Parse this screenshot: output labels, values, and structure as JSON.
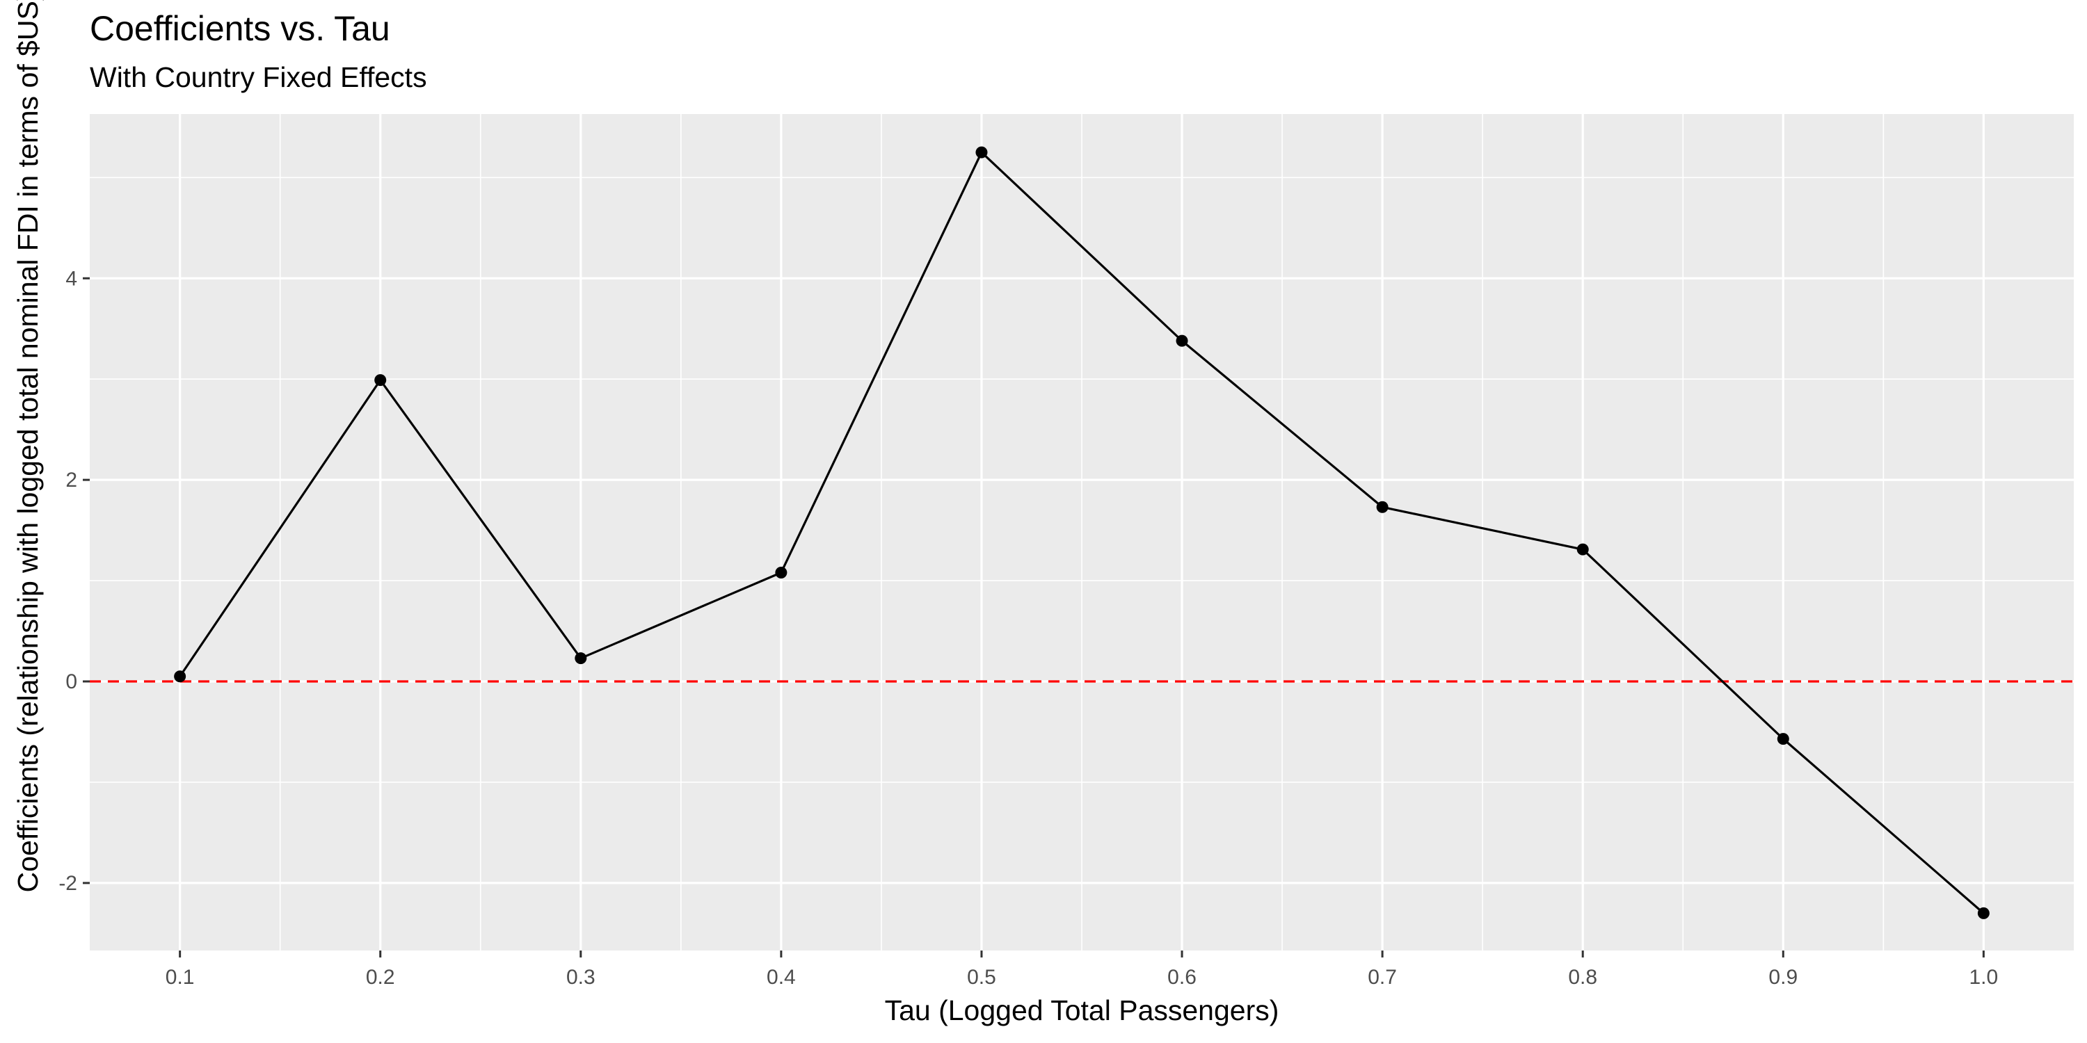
{
  "chart_data": {
    "type": "line",
    "title": "Coefficients vs. Tau",
    "subtitle": "With Country Fixed Effects",
    "xlabel": "Tau (Logged Total Passengers)",
    "ylabel": "Coefficients (relationship with logged total nominal FDI in terms of $US)",
    "x": [
      0.1,
      0.2,
      0.3,
      0.4,
      0.5,
      0.6,
      0.7,
      0.8,
      0.9,
      1.0
    ],
    "x_tick_labels": [
      "0.1",
      "0.2",
      "0.3",
      "0.4",
      "0.5",
      "0.6",
      "0.7",
      "0.8",
      "0.9",
      "1.0"
    ],
    "series": [
      {
        "values": [
          0.05,
          2.99,
          0.23,
          1.08,
          5.25,
          3.38,
          1.73,
          1.31,
          -0.57,
          -2.3
        ]
      }
    ],
    "y_ticks": [
      -2,
      0,
      2,
      4
    ],
    "y_tick_labels": [
      "-2",
      "0",
      "2",
      "4"
    ],
    "xlim": [
      0.055,
      1.045
    ],
    "ylim": [
      -2.67,
      5.63
    ],
    "reference_line": {
      "y": 0,
      "style": "dashed",
      "color": "#ff0000"
    },
    "grid": true,
    "legend": "none",
    "colors": {
      "panel": "#ebebeb",
      "grid": "#ffffff",
      "line": "#000000",
      "points": "#000000"
    }
  }
}
